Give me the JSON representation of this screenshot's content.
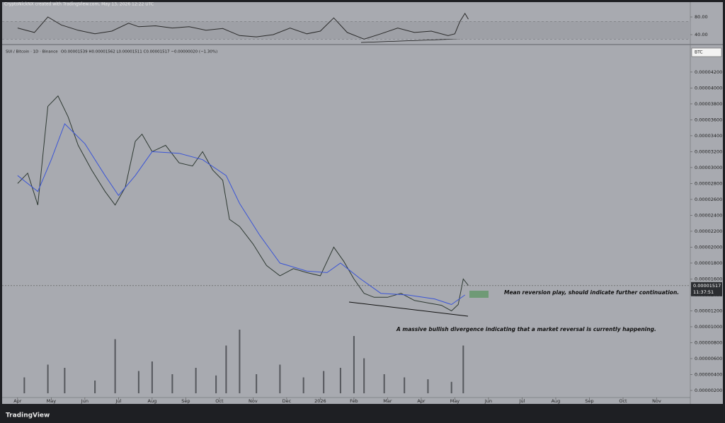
{
  "header": {
    "author_line": "CryptoNickNX created with TradingView.com, May 13, 2026 12:22 UTC"
  },
  "footer": {
    "logo": "TradingView"
  },
  "chart_data": [
    {
      "type": "line",
      "legend": "SUI / Bitcoin · 1D · Binance",
      "ohlc": "O0.00001539 H0.00001562 L0.00001511 C0.00001517 −0.00000020 (−1.30%)",
      "currency": "BTC",
      "last_price": {
        "value": 1.517e-05,
        "label": "0.00001517"
      },
      "countdown": "11:37:51",
      "annotations": [
        "Mean reversion play, should indicate further continuation.",
        "A massive bullish divergence indicating that a market reversal is currently happening."
      ],
      "xlim": [
        -0.46,
        20
      ],
      "xticks": [
        {
          "value": 0,
          "label": "Apr"
        },
        {
          "value": 1,
          "label": "May"
        },
        {
          "value": 2,
          "label": "Jun"
        },
        {
          "value": 3,
          "label": "Jul"
        },
        {
          "value": 4,
          "label": "Aug"
        },
        {
          "value": 5,
          "label": "Sep"
        },
        {
          "value": 6,
          "label": "Oct"
        },
        {
          "value": 7,
          "label": "Nov"
        },
        {
          "value": 8,
          "label": "Dec"
        },
        {
          "value": 9,
          "label": "2026"
        },
        {
          "value": 10,
          "label": "Feb"
        },
        {
          "value": 11,
          "label": "Mar"
        },
        {
          "value": 12,
          "label": "Apr"
        },
        {
          "value": 13,
          "label": "May"
        },
        {
          "value": 14,
          "label": "Jun"
        },
        {
          "value": 15,
          "label": "Jul"
        },
        {
          "value": 16,
          "label": "Aug"
        },
        {
          "value": 17,
          "label": "Sep"
        },
        {
          "value": 18,
          "label": "Oct"
        },
        {
          "value": 19,
          "label": "Nov"
        }
      ],
      "ylim": [
        1.11e-06,
        4.51e-05
      ],
      "yticks": [
        {
          "value": 2e-06,
          "label": "0.00000200"
        },
        {
          "value": 4e-06,
          "label": "0.00000400"
        },
        {
          "value": 6e-06,
          "label": "0.00000600"
        },
        {
          "value": 8e-06,
          "label": "0.00000800"
        },
        {
          "value": 1e-05,
          "label": "0.00001000"
        },
        {
          "value": 1.2e-05,
          "label": "0.00001200"
        },
        {
          "value": 1.4e-05,
          "label": "0.00001400"
        },
        {
          "value": 1.6e-05,
          "label": "0.00001600"
        },
        {
          "value": 1.8e-05,
          "label": "0.00001800"
        },
        {
          "value": 2e-05,
          "label": "0.00002000"
        },
        {
          "value": 2.2e-05,
          "label": "0.00002200"
        },
        {
          "value": 2.4e-05,
          "label": "0.00002400"
        },
        {
          "value": 2.6e-05,
          "label": "0.00002600"
        },
        {
          "value": 2.8e-05,
          "label": "0.00002800"
        },
        {
          "value": 3e-05,
          "label": "0.00003000"
        },
        {
          "value": 3.2e-05,
          "label": "0.00003200"
        },
        {
          "value": 3.4e-05,
          "label": "0.00003400"
        },
        {
          "value": 3.6e-05,
          "label": "0.00003600"
        },
        {
          "value": 3.8e-05,
          "label": "0.00003800"
        },
        {
          "value": 4e-05,
          "label": "0.00004000"
        },
        {
          "value": 4.2e-05,
          "label": "0.00004200"
        }
      ],
      "series": [
        {
          "color": "#2f3a33",
          "x": [
            0,
            0.3,
            0.6,
            0.9,
            1.2,
            1.5,
            1.8,
            2.2,
            2.6,
            2.9,
            3.2,
            3.5,
            3.7,
            4.0,
            4.4,
            4.8,
            5.2,
            5.5,
            5.8,
            6.1,
            6.3,
            6.6,
            7.0,
            7.4,
            7.8,
            8.2,
            8.6,
            9.0,
            9.4,
            9.7,
            10.0,
            10.3,
            10.6,
            11.0,
            11.4,
            11.8,
            12.2,
            12.6,
            12.9,
            13.1,
            13.25,
            13.4
          ],
          "values": [
            2.8e-05,
            2.93e-05,
            2.53e-05,
            3.77e-05,
            3.9e-05,
            3.64e-05,
            3.28e-05,
            2.97e-05,
            2.7e-05,
            2.53e-05,
            2.75e-05,
            3.33e-05,
            3.42e-05,
            3.2e-05,
            3.28e-05,
            3.06e-05,
            3.02e-05,
            3.2e-05,
            2.97e-05,
            2.84e-05,
            2.35e-05,
            2.26e-05,
            2.04e-05,
            1.77e-05,
            1.64e-05,
            1.73e-05,
            1.68e-05,
            1.64e-05,
            2e-05,
            1.82e-05,
            1.6e-05,
            1.42e-05,
            1.37e-05,
            1.37e-05,
            1.42e-05,
            1.33e-05,
            1.3e-05,
            1.27e-05,
            1.2e-05,
            1.28e-05,
            1.6e-05,
            1.52e-05
          ]
        },
        {
          "color": "#3b55d6",
          "x": [
            0,
            0.6,
            1.0,
            1.4,
            2.0,
            2.6,
            3.0,
            3.5,
            4.0,
            4.8,
            5.5,
            6.2,
            6.6,
            7.2,
            7.8,
            8.6,
            9.2,
            9.6,
            10.2,
            10.8,
            11.6,
            12.4,
            12.9,
            13.3
          ],
          "values": [
            2.9e-05,
            2.7e-05,
            3.1e-05,
            3.55e-05,
            3.3e-05,
            2.9e-05,
            2.65e-05,
            2.9e-05,
            3.2e-05,
            3.18e-05,
            3.1e-05,
            2.9e-05,
            2.55e-05,
            2.15e-05,
            1.8e-05,
            1.7e-05,
            1.68e-05,
            1.8e-05,
            1.6e-05,
            1.42e-05,
            1.4e-05,
            1.35e-05,
            1.28e-05,
            1.4e-05
          ]
        }
      ],
      "volume": {
        "color": "#55575c",
        "ylim": [
          0,
          100
        ],
        "x": [
          0.2,
          0.9,
          1.4,
          2.3,
          2.9,
          3.6,
          4.0,
          4.6,
          5.3,
          5.9,
          6.2,
          6.6,
          7.1,
          7.8,
          8.5,
          9.1,
          9.6,
          10.0,
          10.3,
          10.9,
          11.5,
          12.2,
          12.9,
          13.25
        ],
        "values": [
          25,
          45,
          40,
          20,
          85,
          35,
          50,
          30,
          40,
          28,
          75,
          100,
          30,
          45,
          25,
          35,
          40,
          90,
          55,
          30,
          25,
          22,
          18,
          75
        ]
      }
    },
    {
      "type": "line",
      "ylim": [
        19.2,
        94.4
      ],
      "yticks": [
        {
          "value": 80,
          "label": "80.00"
        },
        {
          "value": 40,
          "label": "40.00"
        }
      ],
      "band": [
        30,
        70
      ],
      "xlim": [
        -0.46,
        20
      ],
      "series": [
        {
          "color": "#2b2b2b",
          "x": [
            0,
            0.5,
            0.9,
            1.3,
            1.8,
            2.3,
            2.8,
            3.3,
            3.6,
            4.1,
            4.6,
            5.1,
            5.6,
            6.1,
            6.6,
            7.1,
            7.6,
            8.1,
            8.6,
            9.0,
            9.4,
            9.8,
            10.3,
            10.8,
            11.3,
            11.8,
            12.3,
            12.8,
            13.0,
            13.15,
            13.3,
            13.4
          ],
          "values": [
            55,
            45,
            80,
            62,
            50,
            42,
            48,
            66,
            58,
            60,
            55,
            58,
            50,
            54,
            38,
            35,
            40,
            55,
            42,
            48,
            78,
            45,
            30,
            42,
            55,
            45,
            48,
            38,
            42,
            70,
            88,
            75
          ]
        }
      ]
    }
  ]
}
